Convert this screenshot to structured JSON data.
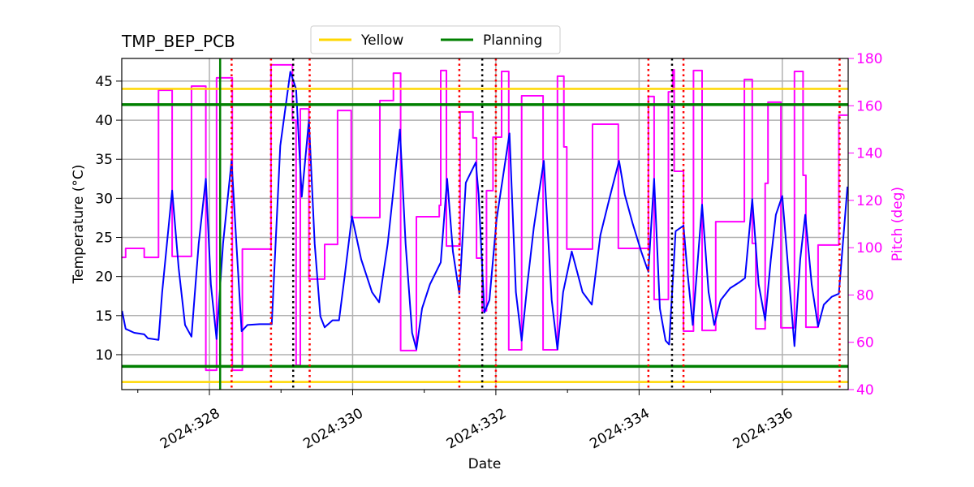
{
  "chart_data": {
    "type": "line",
    "title": "TMP_BEP_PCB",
    "x_label": "Date",
    "y_label": "Temperature (°C)",
    "y2_label": "Pitch (deg)",
    "xlim": [
      326.776,
      336.92
    ],
    "xticks": [
      {
        "value": 328,
        "label": "2024:328"
      },
      {
        "value": 330,
        "label": "2024:330"
      },
      {
        "value": 332,
        "label": "2024:332"
      },
      {
        "value": 334,
        "label": "2024:334"
      },
      {
        "value": 336,
        "label": "2024:336"
      }
    ],
    "xminorticks": [
      327,
      329,
      331,
      333,
      335
    ],
    "ylim": [
      5.53,
      47.9
    ],
    "yticks": [
      10,
      15,
      20,
      25,
      30,
      35,
      40,
      45
    ],
    "y2lim": [
      40,
      180
    ],
    "y2ticks": [
      40,
      60,
      80,
      100,
      120,
      140,
      160,
      180
    ],
    "y2_color": "#ff00ff",
    "grid": true,
    "legend": "upper center",
    "series": [
      {
        "color": "#0000ff",
        "x": [
          326.78,
          326.83,
          326.95,
          327.09,
          327.14,
          327.29,
          327.34,
          327.48,
          327.57,
          327.66,
          327.75,
          327.85,
          327.95,
          328.02,
          328.1,
          328.19,
          328.31,
          328.39,
          328.45,
          328.53,
          328.7,
          328.87,
          328.99,
          329.13,
          329.21,
          329.29,
          329.39,
          329.47,
          329.55,
          329.61,
          329.72,
          329.81,
          329.89,
          329.99,
          330.12,
          330.27,
          330.37,
          330.49,
          330.66,
          330.74,
          330.83,
          330.89,
          330.97,
          331.08,
          331.23,
          331.32,
          331.4,
          331.49,
          331.58,
          331.72,
          331.76,
          331.84,
          331.91,
          332.01,
          332.19,
          332.28,
          332.36,
          332.44,
          332.53,
          332.67,
          332.78,
          332.86,
          332.94,
          333.06,
          333.21,
          333.34,
          333.46,
          333.6,
          333.72,
          333.8,
          333.91,
          334.03,
          334.13,
          334.21,
          334.29,
          334.37,
          334.42,
          334.51,
          334.62,
          334.67,
          334.75,
          334.88,
          334.97,
          335.05,
          335.14,
          335.27,
          335.39,
          335.48,
          335.58,
          335.67,
          335.76,
          335.84,
          335.91,
          336.0,
          336.09,
          336.17,
          336.25,
          336.32,
          336.41,
          336.5,
          336.58,
          336.69,
          336.79,
          336.91
        ],
        "values": [
          15.6,
          13.3,
          12.8,
          12.6,
          12.1,
          11.9,
          18.0,
          31.0,
          21.1,
          13.8,
          12.3,
          24.2,
          32.5,
          19.0,
          12.0,
          24.2,
          34.8,
          22.2,
          13.0,
          13.8,
          13.9,
          13.9,
          36.7,
          46.2,
          44.0,
          30.2,
          40.0,
          24.2,
          14.9,
          13.5,
          14.4,
          14.4,
          20.1,
          27.7,
          22.2,
          18.0,
          16.7,
          24.2,
          38.8,
          24.2,
          12.8,
          10.7,
          15.9,
          19.0,
          21.8,
          32.5,
          23.2,
          17.8,
          32.0,
          34.6,
          30.5,
          15.4,
          17.0,
          27.3,
          38.3,
          18.0,
          11.8,
          19.0,
          26.3,
          34.8,
          17.0,
          10.7,
          18.0,
          23.2,
          18.0,
          16.4,
          25.3,
          30.5,
          34.8,
          30.5,
          26.8,
          23.2,
          20.6,
          32.5,
          15.9,
          11.8,
          11.3,
          25.8,
          26.5,
          21.1,
          13.8,
          29.2,
          18.0,
          13.8,
          17.0,
          18.5,
          19.2,
          19.8,
          29.9,
          19.0,
          14.4,
          22.2,
          27.9,
          30.3,
          20.1,
          11.1,
          22.2,
          27.9,
          19.0,
          13.6,
          16.4,
          17.4,
          17.8,
          31.5
        ]
      },
      {
        "color": "#ff00ff",
        "axis": "y2",
        "x": [
          326.78,
          326.83,
          326.83,
          327.09,
          327.09,
          327.29,
          327.29,
          327.48,
          327.48,
          327.75,
          327.75,
          327.95,
          327.95,
          328.1,
          328.1,
          328.32,
          328.32,
          328.46,
          328.46,
          328.86,
          328.86,
          329.16,
          329.16,
          329.21,
          329.21,
          329.27,
          329.27,
          329.39,
          329.39,
          329.61,
          329.61,
          329.79,
          329.79,
          329.98,
          329.98,
          330.38,
          330.38,
          330.57,
          330.57,
          330.67,
          330.67,
          330.89,
          330.89,
          331.21,
          331.21,
          331.23,
          331.23,
          331.31,
          331.31,
          331.5,
          331.5,
          331.68,
          331.68,
          331.73,
          331.73,
          331.81,
          331.81,
          331.87,
          331.87,
          331.96,
          331.96,
          332.08,
          332.08,
          332.18,
          332.18,
          332.36,
          332.36,
          332.66,
          332.66,
          332.86,
          332.86,
          332.95,
          332.95,
          332.99,
          332.99,
          333.35,
          333.35,
          333.71,
          333.71,
          334.13,
          334.13,
          334.21,
          334.21,
          334.41,
          334.41,
          334.47,
          334.47,
          334.49,
          334.49,
          334.62,
          334.62,
          334.76,
          334.76,
          334.88,
          334.88,
          335.07,
          335.07,
          335.47,
          335.47,
          335.58,
          335.58,
          335.63,
          335.63,
          335.76,
          335.76,
          335.8,
          335.8,
          335.98,
          335.98,
          336.17,
          336.17,
          336.29,
          336.29,
          336.33,
          336.33,
          336.5,
          336.5,
          336.79,
          336.79,
          336.91
        ],
        "values": [
          95.9,
          95.9,
          99.7,
          99.7,
          95.9,
          95.9,
          166.6,
          166.6,
          96.3,
          96.3,
          168.3,
          168.3,
          48.2,
          48.2,
          171.8,
          171.8,
          48.2,
          48.2,
          99.4,
          99.4,
          177.3,
          177.3,
          153.9,
          153.9,
          50.3,
          50.3,
          158.7,
          158.7,
          86.7,
          86.7,
          101.4,
          101.4,
          158.0,
          158.0,
          112.7,
          112.7,
          162.2,
          162.2,
          173.8,
          173.8,
          56.5,
          56.5,
          113.1,
          113.1,
          117.9,
          117.9,
          174.9,
          174.9,
          100.7,
          100.7,
          157.4,
          157.4,
          146.4,
          146.4,
          95.6,
          95.6,
          73.3,
          73.3,
          124.1,
          124.1,
          146.7,
          146.7,
          174.5,
          174.5,
          56.8,
          56.8,
          164.2,
          164.2,
          56.8,
          56.8,
          172.5,
          172.5,
          142.6,
          142.6,
          99.4,
          99.4,
          152.2,
          152.2,
          99.7,
          99.7,
          163.9,
          163.9,
          78.1,
          78.1,
          165.9,
          165.9,
          175.2,
          175.2,
          132.3,
          132.3,
          64.7,
          64.7,
          174.9,
          174.9,
          65.0,
          65.0,
          111.0,
          111.0,
          171.1,
          171.1,
          101.8,
          101.8,
          65.7,
          65.7,
          127.2,
          127.2,
          161.5,
          161.5,
          66.1,
          66.1,
          174.5,
          174.5,
          130.6,
          130.6,
          66.4,
          66.4,
          101.1,
          101.1,
          156.0,
          156.0
        ]
      }
    ],
    "limits": [
      {
        "name": "Yellow",
        "color": "#ffd700",
        "values": [
          44,
          6.5
        ]
      },
      {
        "name": "Planning",
        "color": "#008000",
        "values": [
          42,
          8.5
        ]
      }
    ],
    "vlines": [
      {
        "x": 328.15,
        "color": "#008000",
        "style": "solid"
      },
      {
        "x": 328.31,
        "color": "#ff0000",
        "style": "dotted"
      },
      {
        "x": 328.86,
        "color": "#ff0000",
        "style": "dotted"
      },
      {
        "x": 329.17,
        "color": "#000000",
        "style": "dotted"
      },
      {
        "x": 329.4,
        "color": "#ff0000",
        "style": "dotted"
      },
      {
        "x": 331.49,
        "color": "#ff0000",
        "style": "dotted"
      },
      {
        "x": 331.81,
        "color": "#000000",
        "style": "dotted"
      },
      {
        "x": 332.0,
        "color": "#ff0000",
        "style": "dotted"
      },
      {
        "x": 334.13,
        "color": "#ff0000",
        "style": "dotted"
      },
      {
        "x": 334.46,
        "color": "#000000",
        "style": "dotted"
      },
      {
        "x": 334.62,
        "color": "#ff0000",
        "style": "dotted"
      },
      {
        "x": 336.8,
        "color": "#ff0000",
        "style": "dotted"
      }
    ]
  }
}
